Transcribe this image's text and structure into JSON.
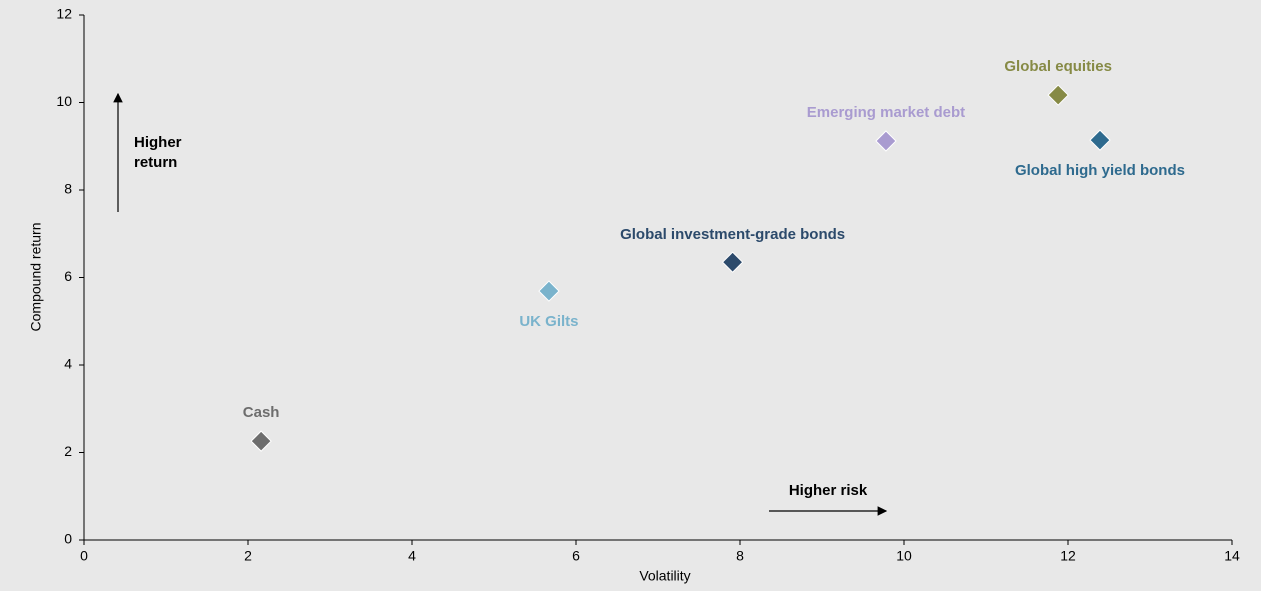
{
  "chart_data": {
    "type": "scatter",
    "x_label": "Volatility",
    "y_label": "Compound return",
    "xlim": [
      0,
      14
    ],
    "ylim": [
      0,
      12
    ],
    "xticks": [
      0,
      2,
      4,
      6,
      8,
      10,
      12,
      14
    ],
    "yticks": [
      0,
      2,
      4,
      6,
      8,
      10,
      12
    ],
    "annotations": [
      [
        "Higher",
        "return"
      ],
      [
        "Higher risk"
      ]
    ],
    "series": [
      {
        "name": "Cash",
        "color": "#6d6d6d",
        "x": [
          2.16
        ],
        "values": [
          2.26
        ]
      },
      {
        "name": "UK Gilts",
        "color": "#7ab3cc",
        "x": [
          5.67
        ],
        "values": [
          5.69
        ]
      },
      {
        "name": "Global investment-grade bonds",
        "color": "#2c4a6b",
        "x": [
          7.91
        ],
        "values": [
          6.35
        ]
      },
      {
        "name": "Emerging market debt",
        "color": "#a99bd0",
        "x": [
          9.78
        ],
        "values": [
          9.12
        ]
      },
      {
        "name": "Global equities",
        "color": "#868a45",
        "x": [
          11.88
        ],
        "values": [
          10.17
        ]
      },
      {
        "name": "Global high yield bonds",
        "color": "#2e6a8e",
        "x": [
          12.39
        ],
        "values": [
          9.14
        ]
      }
    ]
  }
}
